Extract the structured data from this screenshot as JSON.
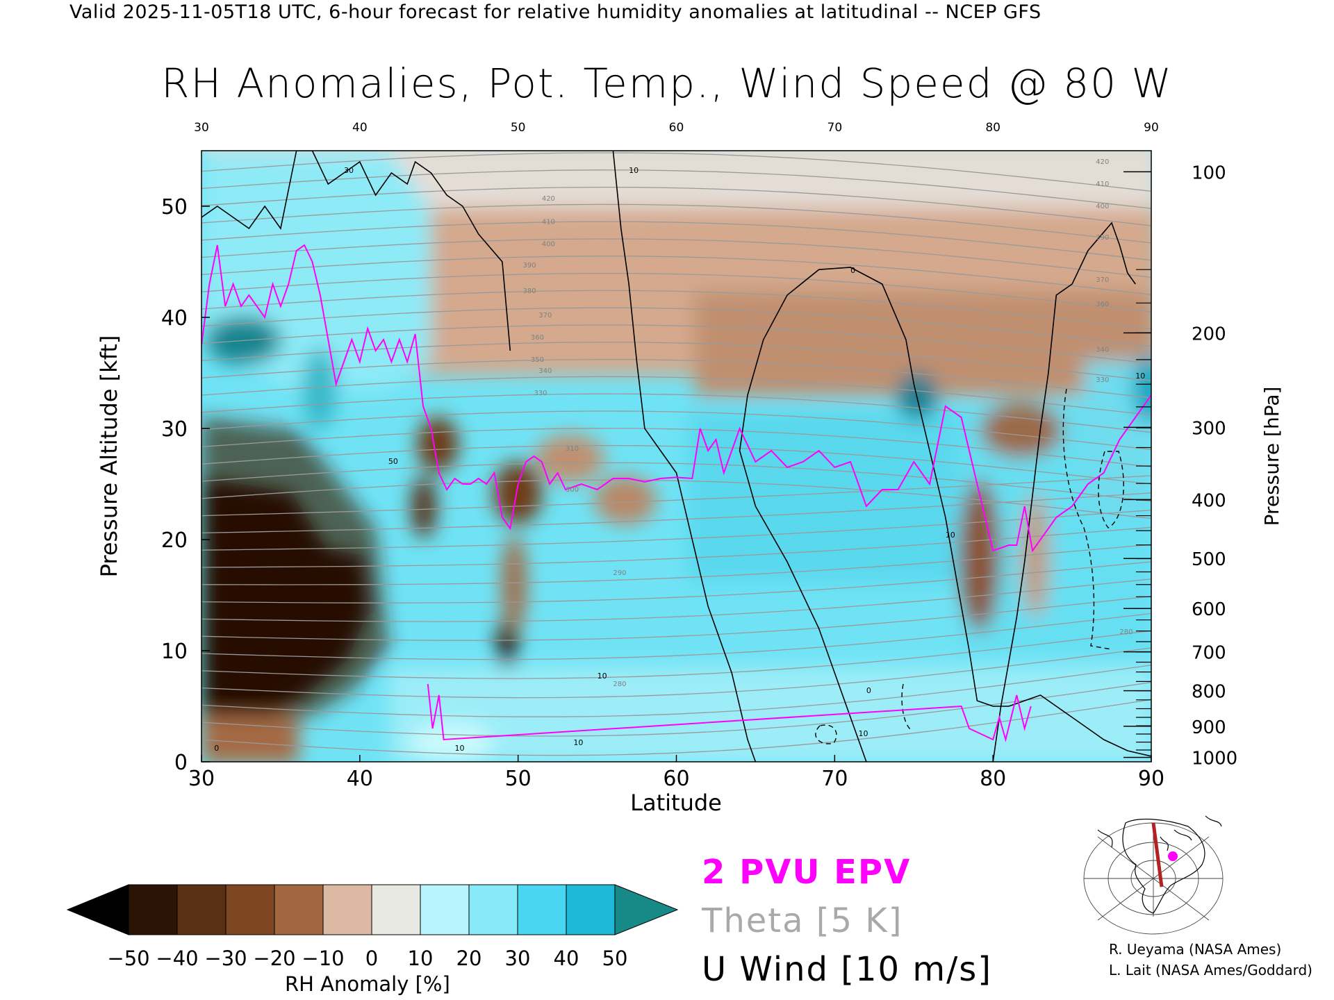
{
  "header": "Valid 2025-11-05T18 UTC, 6-hour forecast for relative humidity anomalies at latitudinal -- NCEP GFS",
  "chart_data": {
    "type": "heatmap",
    "title": "RH Anomalies, Pot. Temp., Wind Speed @ 80 W",
    "xlabel": "Latitude",
    "ylabel": "Pressure Altitude [kft]",
    "ylabel_right": "Pressure [hPa]",
    "xlim": [
      30,
      90
    ],
    "ylim": [
      0,
      55
    ],
    "x_ticks": [
      "30",
      "40",
      "50",
      "60",
      "70",
      "80",
      "90"
    ],
    "y_ticks": [
      "0",
      "10",
      "20",
      "30",
      "40",
      "50"
    ],
    "pressure_ticks": [
      "100",
      "200",
      "300",
      "400",
      "500",
      "600",
      "700",
      "800",
      "900",
      "1000"
    ],
    "pressure_tick_kft": [
      53.1,
      38.6,
      30.1,
      23.6,
      18.3,
      13.8,
      9.9,
      6.4,
      3.2,
      0.4
    ],
    "theta_labels": [
      {
        "text": "420",
        "x": 86.5,
        "y": 53.8
      },
      {
        "text": "410",
        "x": 86.5,
        "y": 51.8
      },
      {
        "text": "400",
        "x": 86.5,
        "y": 49.8
      },
      {
        "text": "390",
        "x": 86.5,
        "y": 47.0
      },
      {
        "text": "370",
        "x": 86.5,
        "y": 43.2
      },
      {
        "text": "360",
        "x": 86.5,
        "y": 41.0
      },
      {
        "text": "340",
        "x": 86.5,
        "y": 36.9
      },
      {
        "text": "330",
        "x": 86.5,
        "y": 34.2
      },
      {
        "text": "420",
        "x": 51.5,
        "y": 50.5
      },
      {
        "text": "410",
        "x": 51.5,
        "y": 48.4
      },
      {
        "text": "400",
        "x": 51.5,
        "y": 46.4
      },
      {
        "text": "390",
        "x": 50.3,
        "y": 44.5
      },
      {
        "text": "380",
        "x": 50.3,
        "y": 42.2
      },
      {
        "text": "370",
        "x": 51.3,
        "y": 40.0
      },
      {
        "text": "360",
        "x": 50.8,
        "y": 38.0
      },
      {
        "text": "350",
        "x": 50.8,
        "y": 36.0
      },
      {
        "text": "340",
        "x": 51.3,
        "y": 35.0
      },
      {
        "text": "330",
        "x": 51.0,
        "y": 33.0
      },
      {
        "text": "310",
        "x": 53.0,
        "y": 28.0
      },
      {
        "text": "300",
        "x": 53.0,
        "y": 24.3
      },
      {
        "text": "290",
        "x": 56.0,
        "y": 16.8
      },
      {
        "text": "280",
        "x": 56.0,
        "y": 6.8
      },
      {
        "text": "280",
        "x": 88.0,
        "y": 11.5
      }
    ],
    "wind_labels": [
      {
        "text": "30",
        "x": 39.0,
        "y": 53.0
      },
      {
        "text": "10",
        "x": 57.0,
        "y": 53.0
      },
      {
        "text": "0",
        "x": 71.0,
        "y": 44.0
      },
      {
        "text": "50",
        "x": 41.8,
        "y": 26.8
      },
      {
        "text": "10",
        "x": 77.0,
        "y": 20.2
      },
      {
        "text": "10",
        "x": 55.0,
        "y": 7.5
      },
      {
        "text": "0",
        "x": 72.0,
        "y": 6.2
      },
      {
        "text": "10",
        "x": 71.5,
        "y": 2.3
      },
      {
        "text": "10",
        "x": 46.0,
        "y": 1.0
      },
      {
        "text": "10",
        "x": 53.5,
        "y": 1.5
      },
      {
        "text": "10",
        "x": 89.0,
        "y": 34.5
      },
      {
        "text": "0",
        "x": 30.8,
        "y": 1.0
      }
    ],
    "epv_2pvu_line": {
      "name": "2 PVU EPV",
      "color": "#ff00ff",
      "points": [
        [
          30,
          37.5
        ],
        [
          30.5,
          43
        ],
        [
          31,
          46.5
        ],
        [
          31.5,
          41
        ],
        [
          32,
          43
        ],
        [
          32.5,
          41
        ],
        [
          33,
          42
        ],
        [
          33.5,
          41
        ],
        [
          34,
          40
        ],
        [
          34.5,
          43
        ],
        [
          35,
          41
        ],
        [
          35.5,
          43
        ],
        [
          36,
          46
        ],
        [
          36.5,
          46.5
        ],
        [
          37,
          45
        ],
        [
          37.5,
          42
        ],
        [
          38,
          38
        ],
        [
          38.5,
          34
        ],
        [
          39,
          36
        ],
        [
          39.5,
          38
        ],
        [
          40,
          36
        ],
        [
          40.5,
          39
        ],
        [
          41,
          37
        ],
        [
          41.5,
          38
        ],
        [
          42,
          36
        ],
        [
          42.5,
          38
        ],
        [
          43,
          36
        ],
        [
          43.5,
          38.5
        ],
        [
          44,
          32
        ],
        [
          44.5,
          30
        ],
        [
          45,
          26
        ],
        [
          45.5,
          24.5
        ],
        [
          46,
          25.5
        ],
        [
          46.5,
          25
        ],
        [
          47,
          25
        ],
        [
          47.5,
          25.5
        ],
        [
          48,
          25
        ],
        [
          48.5,
          26
        ],
        [
          49,
          22
        ],
        [
          49.5,
          21
        ],
        [
          50,
          25
        ],
        [
          50.5,
          27
        ],
        [
          51,
          27.5
        ],
        [
          51.5,
          27
        ],
        [
          52,
          25
        ],
        [
          52.5,
          26
        ],
        [
          53,
          24.5
        ],
        [
          54,
          25
        ],
        [
          55,
          24.5
        ],
        [
          56,
          25.5
        ],
        [
          57,
          25.5
        ],
        [
          58,
          25.2
        ],
        [
          59,
          25.5
        ],
        [
          60,
          25.6
        ],
        [
          61,
          25.5
        ],
        [
          61.5,
          30
        ],
        [
          62,
          28
        ],
        [
          62.5,
          29
        ],
        [
          63,
          26
        ],
        [
          64,
          30
        ],
        [
          65,
          27
        ],
        [
          66,
          28
        ],
        [
          67,
          26.5
        ],
        [
          68,
          27
        ],
        [
          69,
          28
        ],
        [
          70,
          26.5
        ],
        [
          71,
          27
        ],
        [
          72,
          23
        ],
        [
          73,
          24.5
        ],
        [
          74,
          24.5
        ],
        [
          75,
          27
        ],
        [
          76,
          25
        ],
        [
          77,
          32
        ],
        [
          78,
          31
        ],
        [
          79,
          25
        ],
        [
          80,
          19
        ],
        [
          81,
          19.5
        ],
        [
          81.5,
          19.5
        ],
        [
          82,
          23
        ],
        [
          82.5,
          19
        ],
        [
          83,
          20
        ],
        [
          84,
          22
        ],
        [
          85,
          23
        ],
        [
          86,
          25
        ],
        [
          87,
          26
        ],
        [
          88,
          29
        ],
        [
          89,
          31
        ],
        [
          90,
          33
        ]
      ],
      "surface_spikes": [
        [
          44.3,
          7
        ],
        [
          44.6,
          3
        ],
        [
          45,
          6
        ],
        [
          45.3,
          2
        ],
        [
          78,
          5
        ],
        [
          78.5,
          3
        ],
        [
          80,
          2
        ],
        [
          80.4,
          4
        ],
        [
          80.8,
          2
        ],
        [
          81.5,
          6
        ],
        [
          82,
          3
        ],
        [
          82.4,
          5
        ]
      ]
    },
    "wind_contours": [
      {
        "value": "30",
        "color": "#000000",
        "points": [
          [
            30,
            49
          ],
          [
            31,
            50
          ],
          [
            32,
            49
          ],
          [
            33,
            48
          ],
          [
            34,
            50
          ],
          [
            35,
            48
          ],
          [
            36,
            55
          ],
          [
            37,
            55
          ],
          [
            38,
            52
          ],
          [
            39,
            53
          ],
          [
            40,
            54
          ],
          [
            41,
            51
          ],
          [
            42,
            53
          ],
          [
            43,
            52
          ],
          [
            43.5,
            54
          ],
          [
            44.5,
            53
          ],
          [
            45.5,
            51
          ],
          [
            46.5,
            50
          ],
          [
            47.5,
            47.5
          ],
          [
            49,
            45
          ],
          [
            49.5,
            37
          ]
        ]
      },
      {
        "value": "10",
        "color": "#000000",
        "points": [
          [
            56,
            55
          ],
          [
            56.5,
            48
          ],
          [
            57,
            43
          ],
          [
            57.5,
            36
          ],
          [
            58,
            30
          ],
          [
            59,
            28
          ],
          [
            60,
            26
          ],
          [
            61,
            20
          ],
          [
            62,
            14
          ],
          [
            63.5,
            8
          ],
          [
            64.5,
            2
          ],
          [
            65,
            0
          ]
        ]
      },
      {
        "value": "0",
        "color": "#000000",
        "points": [
          [
            72,
            0
          ],
          [
            71,
            4
          ],
          [
            70,
            8
          ],
          [
            69,
            12
          ],
          [
            67,
            18
          ],
          [
            65,
            23
          ],
          [
            64,
            28
          ],
          [
            64.5,
            33
          ],
          [
            65.5,
            38
          ],
          [
            67,
            42
          ],
          [
            69,
            44.3
          ],
          [
            71,
            44.5
          ],
          [
            73,
            43
          ],
          [
            74.5,
            38
          ],
          [
            75,
            34
          ],
          [
            76,
            28
          ],
          [
            77,
            22
          ],
          [
            77.5,
            18
          ],
          [
            78,
            14
          ],
          [
            78.5,
            10
          ],
          [
            79,
            5.5
          ],
          [
            80,
            5
          ],
          [
            81,
            5
          ],
          [
            82,
            5.5
          ],
          [
            83,
            6
          ],
          [
            84,
            5
          ],
          [
            85,
            4
          ],
          [
            86,
            3
          ],
          [
            87,
            2
          ],
          [
            88.5,
            1
          ],
          [
            90,
            0.5
          ]
        ]
      },
      {
        "value": "10",
        "color": "#000000",
        "points": [
          [
            89,
            43
          ],
          [
            88.5,
            44
          ],
          [
            88,
            46.5
          ],
          [
            87.5,
            48.5
          ],
          [
            86,
            46
          ],
          [
            85,
            43
          ],
          [
            84,
            42
          ],
          [
            83.5,
            35
          ],
          [
            83,
            30
          ],
          [
            82.5,
            24
          ],
          [
            82,
            18
          ],
          [
            81.5,
            13
          ],
          [
            81,
            9
          ],
          [
            80.5,
            5
          ],
          [
            80,
            0
          ]
        ]
      }
    ],
    "colorbar": {
      "label": "RH Anomaly [%]",
      "ticks": [
        "-50",
        "-40",
        "-30",
        "-20",
        "-10",
        "0",
        "10",
        "20",
        "30",
        "40",
        "50"
      ],
      "colors": [
        "#2b1406",
        "#5a3014",
        "#7e4722",
        "#a1683f",
        "#c08c6a",
        "#dcb9a3",
        "#e8e8e2",
        "#b8f4fb",
        "#88eaf9",
        "#48d6f2",
        "#1fb8d8",
        "#0f8ca8"
      ],
      "low_extend_color": "#000000",
      "high_extend_color": "#178a88"
    },
    "legend": [
      "2 PVU EPV",
      "Theta [5 K]",
      "U Wind [10 m/s]"
    ],
    "legend_colors": [
      "#ff00ff",
      "#a9a9a9",
      "#000000"
    ]
  },
  "credits": [
    "R. Ueyama (NASA Ames)",
    "L. Lait (NASA Ames/Goddard)"
  ]
}
